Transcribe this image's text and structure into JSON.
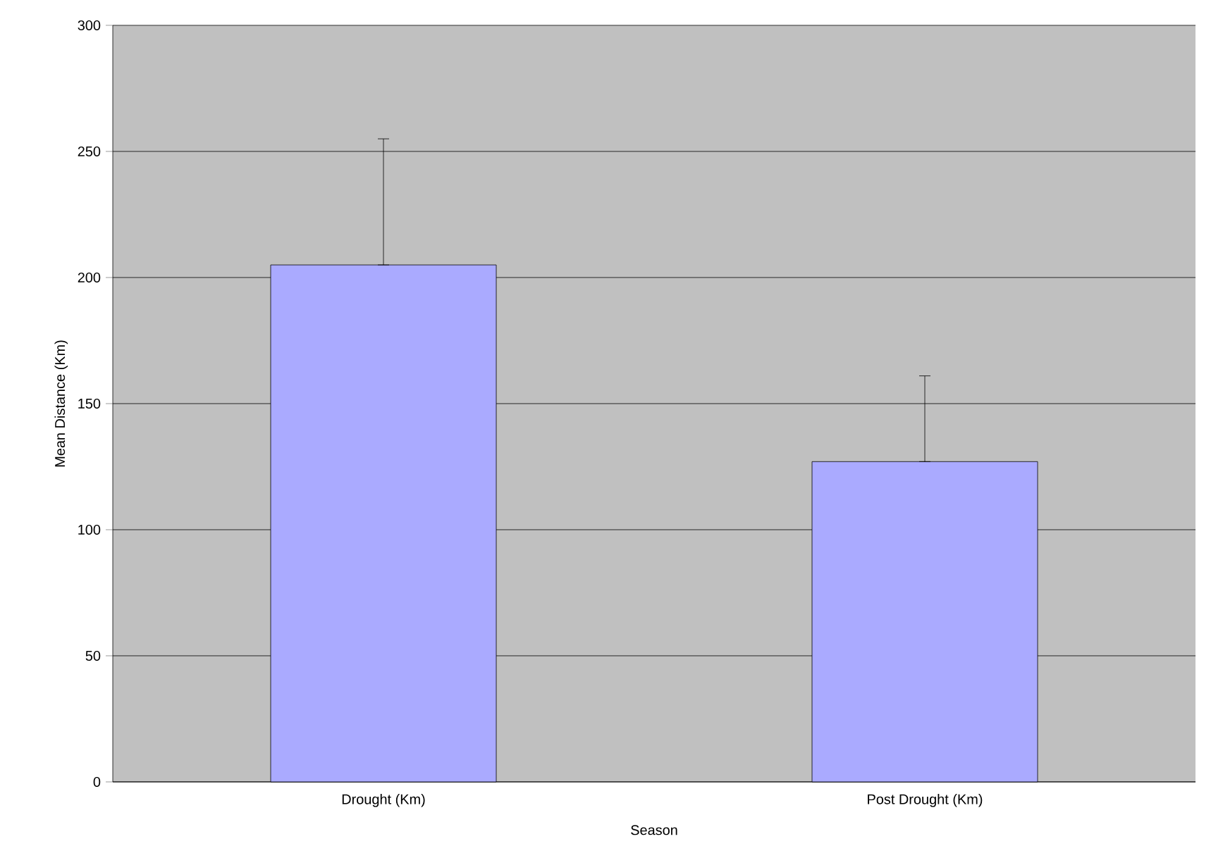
{
  "chart_data": {
    "type": "bar",
    "xlabel": "Season",
    "ylabel": "Mean Distance (Km)",
    "categories": [
      "Drought (Km)",
      "Post Drought (Km)"
    ],
    "values": [
      205,
      127
    ],
    "errors": [
      [
        205,
        255
      ],
      [
        127,
        161
      ]
    ],
    "color": "#aaaaff",
    "ylim": [
      0,
      300
    ],
    "yticks": [
      0,
      50,
      100,
      150,
      200,
      250,
      300
    ],
    "grid": "y"
  }
}
